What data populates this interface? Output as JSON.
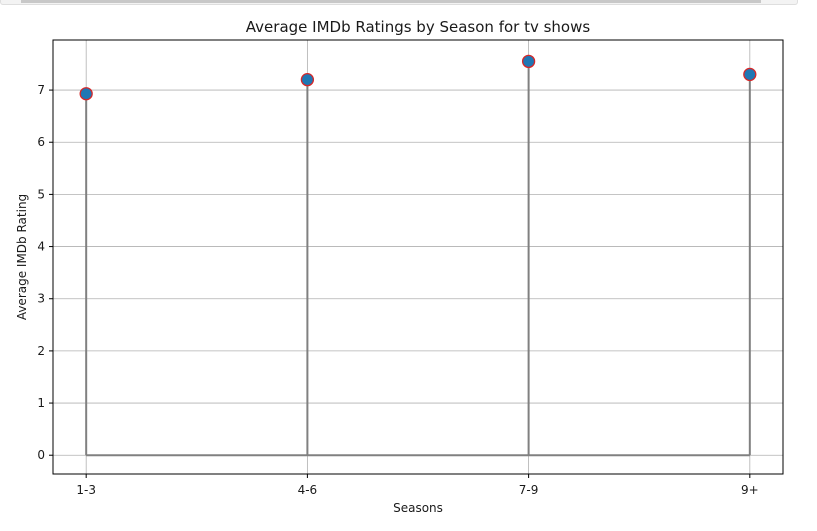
{
  "chart_data": {
    "type": "stem",
    "title": "Average IMDb Ratings by Season for tv shows",
    "xlabel": "Seasons",
    "ylabel": "Average IMDb Rating",
    "categories": [
      "1-3",
      "4-6",
      "7-9",
      "9+"
    ],
    "values": [
      6.93,
      7.2,
      7.55,
      7.3
    ],
    "xlim": [
      -0.15,
      3.15
    ],
    "ylim": [
      -0.36,
      7.96
    ],
    "yticks": [
      0,
      1,
      2,
      3,
      4,
      5,
      6,
      7
    ],
    "grid": true,
    "colors": {
      "stem": "#808080",
      "baseline": "#808080",
      "marker_fill": "#1f77b4",
      "marker_edge": "#d62728",
      "grid": "#b0b0b0"
    }
  }
}
